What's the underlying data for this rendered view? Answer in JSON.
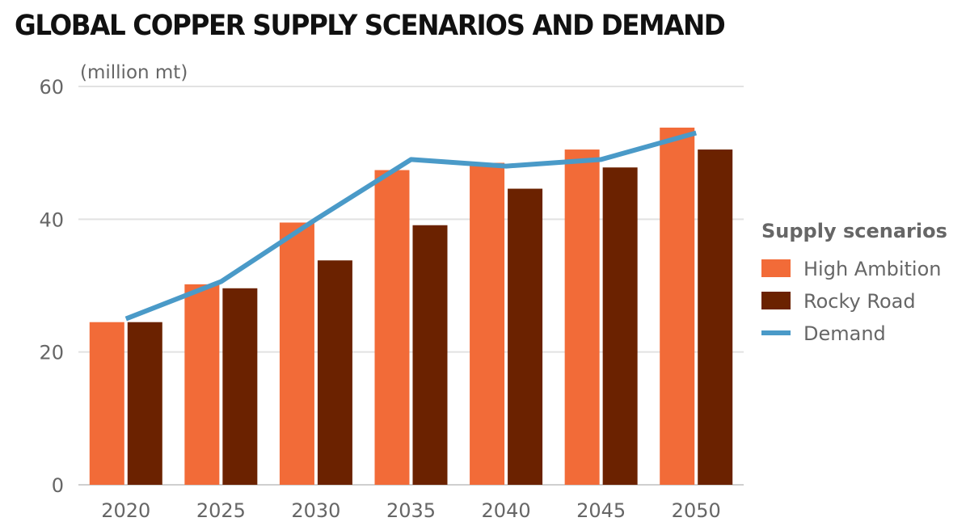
{
  "chart_data": {
    "type": "bar",
    "title": "GLOBAL COPPER SUPPLY SCENARIOS AND DEMAND",
    "unit_label": "(million mt)",
    "xlabel": "",
    "ylabel": "",
    "ylim": [
      0,
      60
    ],
    "yticks": [
      0,
      20,
      40,
      60
    ],
    "grid": true,
    "categories": [
      "2020",
      "2025",
      "2030",
      "2035",
      "2040",
      "2045",
      "2050"
    ],
    "series": [
      {
        "name": "High Ambition",
        "kind": "bar",
        "color": "#f26b38",
        "values": [
          24.5,
          30.2,
          39.5,
          47.4,
          48.5,
          50.5,
          53.8
        ]
      },
      {
        "name": "Rocky Road",
        "kind": "bar",
        "color": "#6b2200",
        "values": [
          24.5,
          29.6,
          33.8,
          39.1,
          44.6,
          47.8,
          50.5
        ]
      },
      {
        "name": "Demand",
        "kind": "line",
        "color": "#4a9ac8",
        "values": [
          25.0,
          30.6,
          40.0,
          49.0,
          48.0,
          49.0,
          53.0
        ]
      }
    ],
    "legend": {
      "title": "Supply scenarios",
      "position": "right"
    }
  }
}
